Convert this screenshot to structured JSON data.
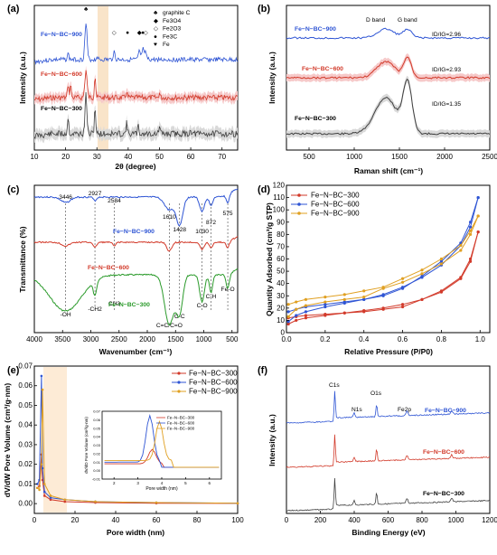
{
  "panels": {
    "a": {
      "label": "(a)"
    },
    "b": {
      "label": "(b)"
    },
    "c": {
      "label": "(c)"
    },
    "d": {
      "label": "(d)"
    },
    "e": {
      "label": "(e)"
    },
    "f": {
      "label": "(f)"
    }
  },
  "colors": {
    "red": "#d23a2a",
    "blue": "#2f55d4",
    "gold": "#e0a022",
    "gray": "#404040",
    "green": "#2a9a2a",
    "band_red": "#f6c9c9",
    "band_gray": "#d9d9d9",
    "band_blue": "#c9d7f6",
    "band_orange": "#fde6cc"
  },
  "chart_data": [
    {
      "id": "a",
      "type": "line",
      "xlabel": "2θ (degree)",
      "ylabel": "Intensity (a.u.)",
      "xlim": [
        10,
        75
      ],
      "xticks": [
        10,
        20,
        30,
        40,
        50,
        60,
        70
      ],
      "series": [
        {
          "name": "Fe−N−BC−900"
        },
        {
          "name": "Fe−N−BC−600"
        },
        {
          "name": "Fe−N−BC−300"
        }
      ],
      "legend": [
        {
          "symbol": "♣",
          "label": "graphite C"
        },
        {
          "symbol": "◆",
          "label": "Fe3O4"
        },
        {
          "symbol": "◇",
          "label": "Fe2O3"
        },
        {
          "symbol": "●",
          "label": "Fe3C"
        },
        {
          "symbol": "♥",
          "label": "Fe"
        }
      ],
      "peak_markers": [
        {
          "x": 26.5,
          "symbol": "♣"
        },
        {
          "x": 35.5,
          "symbol": "◇"
        },
        {
          "x": 39.8,
          "symbol": "●"
        },
        {
          "x": 43.6,
          "symbol": "◆"
        },
        {
          "x": 44.7,
          "symbol": "●"
        },
        {
          "x": 45.6,
          "symbol": "◇"
        }
      ]
    },
    {
      "id": "b",
      "type": "line",
      "xlabel": "Raman shift (cm⁻¹)",
      "ylabel": "Intensity (a.u.)",
      "xlim": [
        250,
        2500
      ],
      "xticks": [
        500,
        1000,
        1500,
        2000,
        2500
      ],
      "band_labels": [
        "D band",
        "G band"
      ],
      "series": [
        {
          "name": "Fe−N−BC−900",
          "ratio": "ID/IG=2.96"
        },
        {
          "name": "Fe−N−BC−600",
          "ratio": "ID/IG=2.93"
        },
        {
          "name": "Fe−N−BC−300",
          "ratio": "ID/IG=1.35"
        }
      ]
    },
    {
      "id": "c",
      "type": "line",
      "xlabel": "Wavenumber (cm⁻¹)",
      "ylabel": "Transmittance (%)",
      "xlim": [
        4000,
        400
      ],
      "xticks": [
        4000,
        3500,
        3000,
        2500,
        2000,
        1500,
        1000,
        500
      ],
      "peak_labels": [
        "3446",
        "2927",
        "2584",
        "1610",
        "1428",
        "1030",
        "872",
        "575"
      ],
      "group_labels": [
        "-OH",
        "-CH2",
        "CH3",
        "C=C/C=O",
        "C-C",
        "C-O",
        "C-H",
        "Fe-O"
      ],
      "series": [
        {
          "name": "Fe−N−BC−900"
        },
        {
          "name": "Fe−N−BC−600"
        },
        {
          "name": "Fe−N−BC−300"
        }
      ]
    },
    {
      "id": "d",
      "type": "line",
      "xlabel": "Relative Pressure (P/P0)",
      "ylabel": "Quantity Adsorbed (cm³/g STP)",
      "xlim": [
        0,
        1.05
      ],
      "ylim": [
        0,
        120
      ],
      "xticks": [
        0.0,
        0.2,
        0.4,
        0.6,
        0.8,
        1.0
      ],
      "yticks": [
        0,
        10,
        20,
        30,
        40,
        50,
        60,
        70,
        80,
        90,
        100,
        110,
        120
      ],
      "series": [
        {
          "name": "Fe−N−BC−300",
          "x": [
            0.01,
            0.05,
            0.1,
            0.2,
            0.3,
            0.4,
            0.5,
            0.6,
            0.7,
            0.8,
            0.9,
            0.95,
            0.99
          ],
          "adsorption": [
            7,
            10,
            12,
            14,
            16,
            18,
            20,
            23,
            27,
            33,
            44,
            58,
            82
          ],
          "desorption": [
            82,
            60,
            45,
            34,
            27,
            21,
            19,
            17,
            16,
            15,
            14,
            13,
            12
          ]
        },
        {
          "name": "Fe−N−BC−600",
          "x": [
            0.01,
            0.05,
            0.1,
            0.2,
            0.3,
            0.4,
            0.5,
            0.6,
            0.7,
            0.8,
            0.9,
            0.95,
            0.99
          ],
          "adsorption": [
            9,
            14,
            17,
            21,
            24,
            27,
            31,
            37,
            45,
            55,
            71,
            86,
            110
          ],
          "desorption": [
            110,
            90,
            73,
            58,
            46,
            36,
            30,
            27,
            25,
            23,
            21,
            19,
            17
          ]
        },
        {
          "name": "Fe−N−BC−900",
          "x": [
            0.01,
            0.05,
            0.1,
            0.2,
            0.3,
            0.4,
            0.5,
            0.6,
            0.7,
            0.8,
            0.9,
            0.95,
            0.99
          ],
          "adsorption": [
            13,
            19,
            22,
            25,
            27,
            29,
            36,
            41,
            48,
            56,
            67,
            80,
            95
          ],
          "desorption": [
            95,
            83,
            71,
            60,
            51,
            44,
            37,
            34,
            31,
            29,
            27,
            25,
            23
          ]
        }
      ]
    },
    {
      "id": "e",
      "type": "line",
      "xlabel": "Pore width (nm)",
      "ylabel": "dV/dW Pore Volume (cm³/g·nm)",
      "xlim": [
        0,
        100
      ],
      "ylim": [
        -0.005,
        0.07
      ],
      "xticks": [
        0,
        20,
        40,
        60,
        80,
        100
      ],
      "yticks": [
        0.0,
        0.01,
        0.02,
        0.03,
        0.04,
        0.05,
        0.06,
        0.07
      ],
      "series": [
        {
          "name": "Fe−N−BC−300",
          "x": [
            1.5,
            2.5,
            3.5,
            4,
            5,
            8,
            15,
            30,
            60,
            100
          ],
          "y": [
            0.008,
            0.009,
            0.025,
            0.012,
            0.004,
            0.002,
            0.001,
            0.0005,
            0.0002,
            0.0001
          ]
        },
        {
          "name": "Fe−N−BC−600",
          "x": [
            1.5,
            2.5,
            3.5,
            4,
            5,
            8,
            15,
            30,
            60,
            100
          ],
          "y": [
            0.01,
            0.012,
            0.065,
            0.018,
            0.006,
            0.003,
            0.002,
            0.001,
            0.0005,
            0.0002
          ]
        },
        {
          "name": "Fe−N−BC−900",
          "x": [
            1.5,
            2.5,
            3.5,
            4,
            5,
            8,
            15,
            30,
            60,
            100
          ],
          "y": [
            0.008,
            0.007,
            0.02,
            0.058,
            0.01,
            0.004,
            0.002,
            0.001,
            0.0005,
            0.0002
          ]
        }
      ],
      "inset": {
        "xlabel": "Pore width (nm)",
        "ylabel": "dV/dD Pore Volume (cm³/g·nm)",
        "xlim": [
          1.5,
          6.5
        ],
        "ylim": [
          -0.01,
          0.07
        ],
        "xticks": [
          2,
          3,
          4,
          5,
          6
        ],
        "yticks": [
          -0.01,
          0.0,
          0.01,
          0.02,
          0.03,
          0.04,
          0.05,
          0.06,
          0.07
        ]
      }
    },
    {
      "id": "f",
      "type": "line",
      "xlabel": "Binding Energy (eV)",
      "ylabel": "Intensity (a.u.)",
      "xlim": [
        0,
        1200
      ],
      "xticks": [
        0,
        200,
        400,
        600,
        800,
        1000,
        1200
      ],
      "peak_labels": [
        "C1s",
        "N1s",
        "O1s",
        "Fe2p"
      ],
      "series": [
        {
          "name": "Fe−N−BC−900"
        },
        {
          "name": "Fe−N−BC−600"
        },
        {
          "name": "Fe−N−BC−300"
        }
      ]
    }
  ]
}
